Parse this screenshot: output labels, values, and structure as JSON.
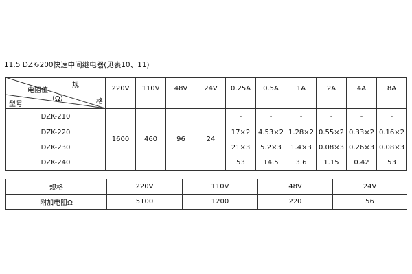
{
  "title": "11.5 DZK-200快速中间继电器(见表10、11)",
  "table1": {
    "corner": {
      "top_right": "规",
      "right": "格",
      "middle": "电阻值",
      "unit": "（Ω）",
      "bottom_left": "型号"
    },
    "columns": [
      "220V",
      "110V",
      "48V",
      "24V",
      "0.25A",
      "0.5A",
      "1A",
      "2A",
      "4A",
      "8A"
    ],
    "models": [
      "DZK-210",
      "DZK-220",
      "DZK-230",
      "DZK-240"
    ],
    "voltage_values": [
      "1600",
      "460",
      "96",
      "24"
    ],
    "current_rows": [
      [
        "-",
        "-",
        "-",
        "-",
        "-",
        "-"
      ],
      [
        "17×2",
        "4.53×2",
        "1.28×2",
        "0.55×2",
        "0.33×2",
        "0.16×2"
      ],
      [
        "21×3",
        "5.2×3",
        "1.4×3",
        "0.08×3",
        "0.26×3",
        "0.08×3"
      ],
      [
        "53",
        "14.5",
        "3.6",
        "1.15",
        "0.42",
        "53"
      ]
    ]
  },
  "table2": {
    "rows": [
      [
        "规格",
        "220V",
        "110V",
        "48V",
        "24V"
      ],
      [
        "附加电阻Ω",
        "5100",
        "1200",
        "220",
        "56"
      ]
    ]
  }
}
